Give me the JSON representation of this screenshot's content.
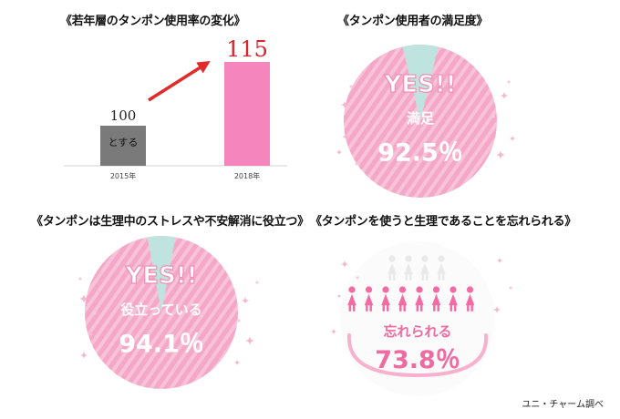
{
  "panels": {
    "bar_title": "《若年層のタンポン使用率の変化》",
    "satisfaction_title": "《タンポン使用者の満足度》",
    "stress_title": "《タンポンは生理中のストレスや不安解消に役立つ》",
    "forget_title": "《タンポンを使うと生理であることを忘れられる》"
  },
  "source": "ユニ・チャーム調べ",
  "colors": {
    "bar_2015": "#7a7a7a",
    "bar_2018": "#f585bd",
    "arrow": "#e12a2a",
    "value_2018": "#d9242b",
    "circle_pink": "#f4a7c6",
    "circle_stripe": "#f8c2d8",
    "gap_teal": "#bfe3df",
    "sparkle": "#f3b9ce",
    "figure": "#f46aa3",
    "figure_faded": "#e9e9e9"
  },
  "chart_data": [
    {
      "type": "bar",
      "title": "《若年層のタンポン使用率の変化》",
      "categories": [
        "2015年",
        "2018年"
      ],
      "values": [
        100,
        115
      ],
      "value_labels": [
        "100",
        "115"
      ],
      "inner_label": "とする",
      "annotation": "arrow increase"
    },
    {
      "type": "pie",
      "title": "《タンポン使用者の満足度》",
      "badge": "YES!!",
      "label": "満足",
      "value": 92.5,
      "value_label": "92.5％"
    },
    {
      "type": "pie",
      "title": "《タンポンは生理中のストレスや不安解消に役立つ》",
      "badge": "YES!!",
      "label": "役立っている",
      "value": 94.1,
      "value_label": "94.1％"
    },
    {
      "type": "pictogram",
      "title": "《タンポンを使うと生理であることを忘れられる》",
      "label": "忘れられる",
      "value": 73.8,
      "value_label": "73.8％"
    }
  ]
}
